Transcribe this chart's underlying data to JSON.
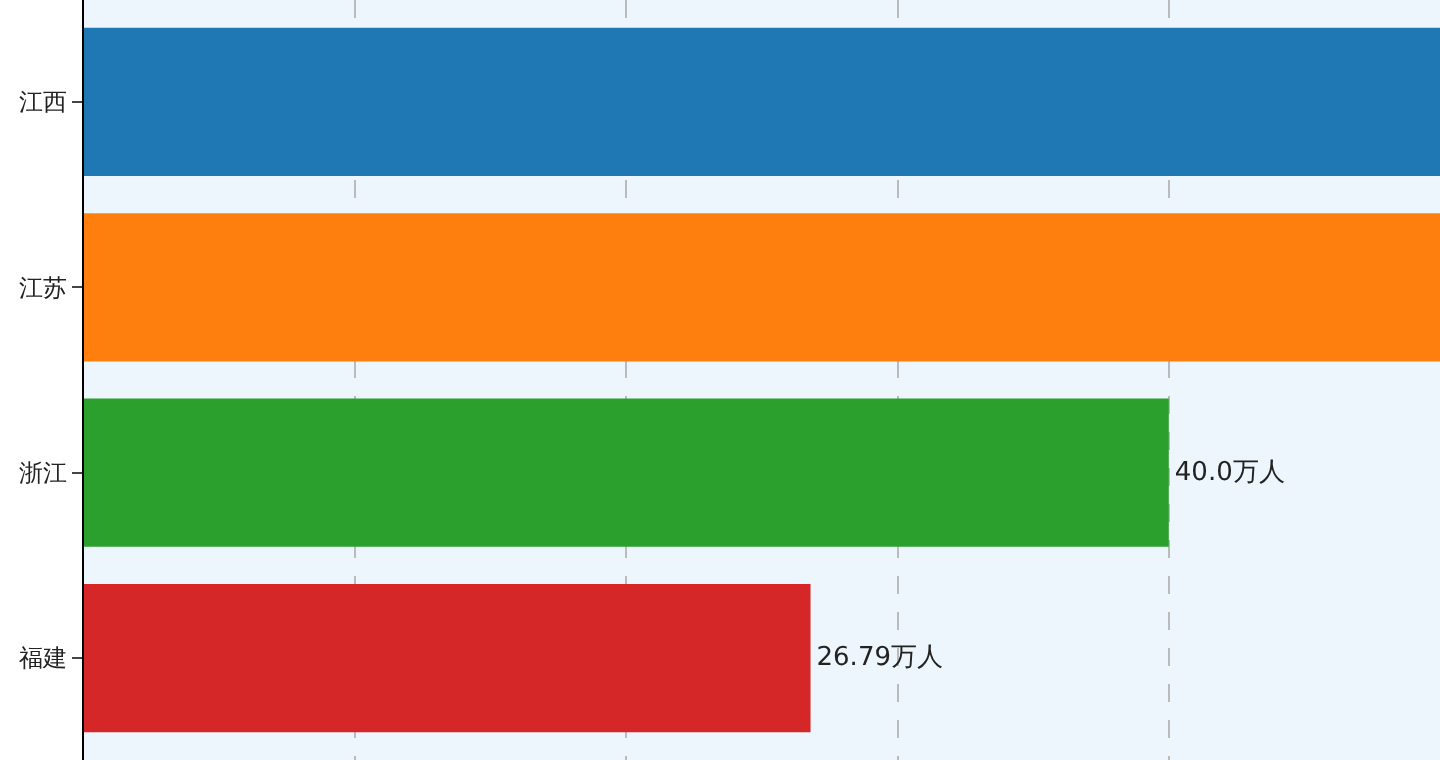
{
  "chart_data": {
    "type": "bar",
    "orientation": "horizontal",
    "categories": [
      "江西",
      "江苏",
      "浙江",
      "福建"
    ],
    "values": [
      50,
      50,
      40.0,
      26.79
    ],
    "colors": [
      "#1f77b4",
      "#ff7f0e",
      "#2ca02c",
      "#d62728"
    ],
    "value_labels": [
      null,
      null,
      "40.0万人",
      "26.79万人"
    ],
    "xlim": [
      0,
      50
    ],
    "xticks": [
      {
        "value": 0,
        "label": null
      },
      {
        "value": 10,
        "label": null
      },
      {
        "value": 20,
        "label": null
      },
      {
        "value": 30,
        "label": null
      },
      {
        "value": 40,
        "label": null
      },
      {
        "value": 50,
        "label": null
      }
    ],
    "grid": "x",
    "tick_labels": "y",
    "legend": false
  }
}
